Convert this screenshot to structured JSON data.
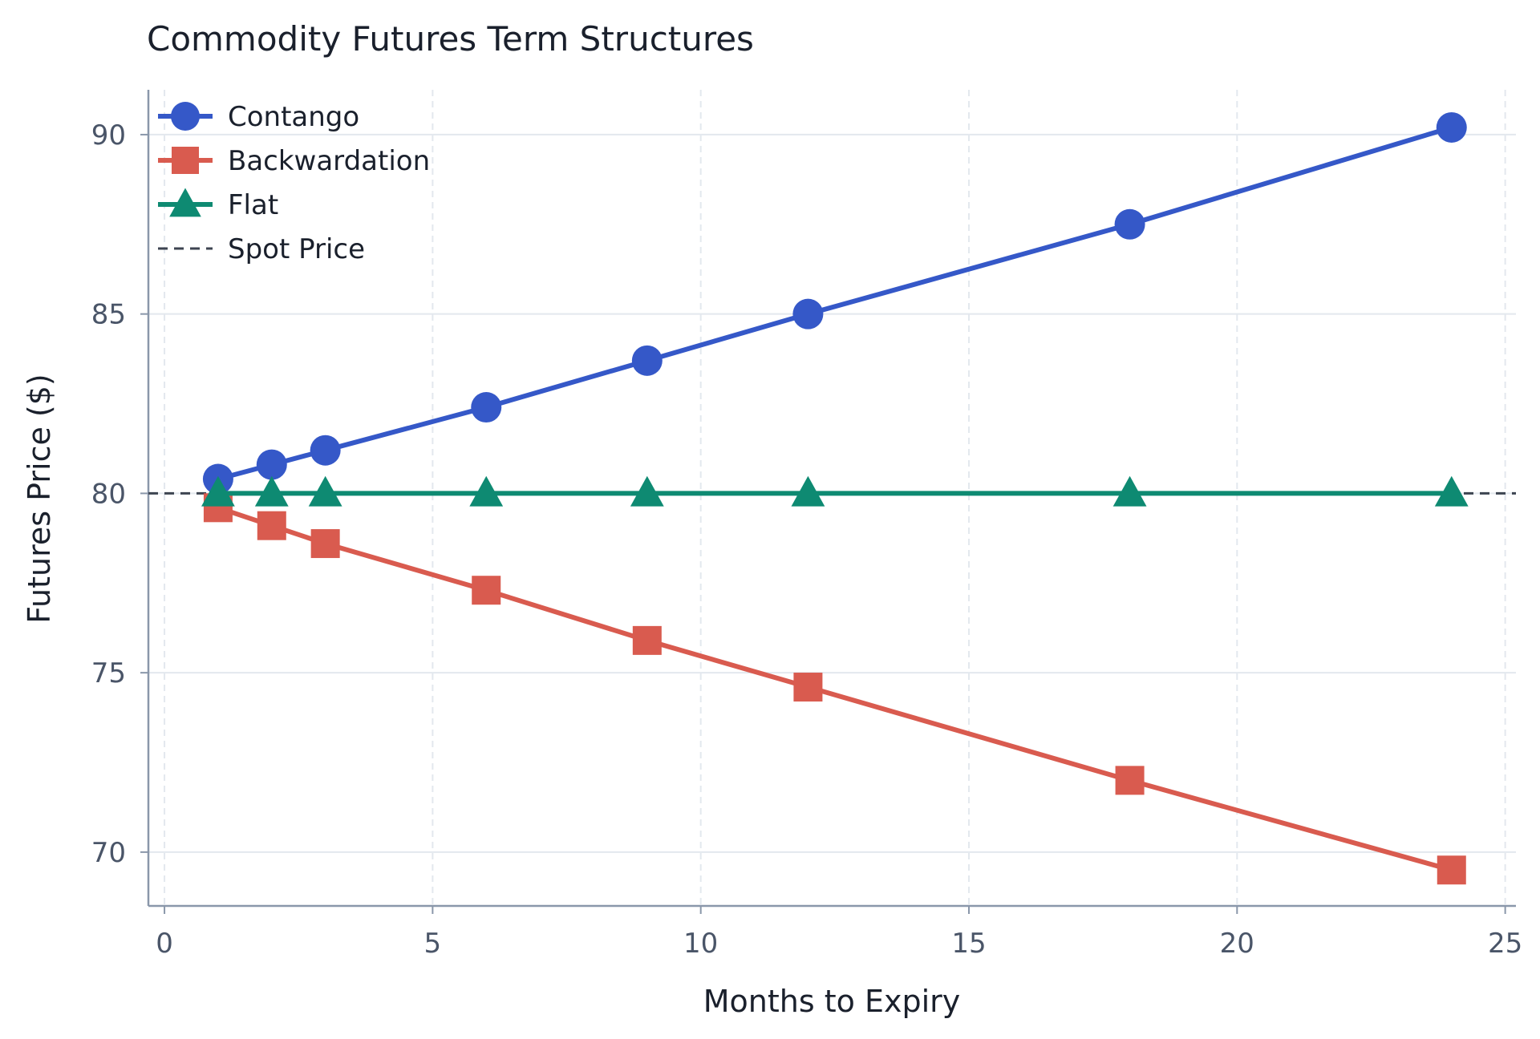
{
  "chart_data": {
    "type": "line",
    "title": "Commodity Futures Term Structures",
    "xlabel": "Months to Expiry",
    "ylabel": "Futures Price ($)",
    "xlim": [
      -0.3,
      25.2
    ],
    "ylim": [
      68.5,
      91.25
    ],
    "xticks": [
      0,
      5,
      10,
      15,
      20,
      25
    ],
    "yticks": [
      70,
      75,
      80,
      85,
      90
    ],
    "grid": true,
    "legend_position": "top-left",
    "x": [
      1,
      2,
      3,
      6,
      9,
      12,
      18,
      24
    ],
    "series": [
      {
        "name": "Contango",
        "color": "#3558c8",
        "marker": "circle",
        "values": [
          80.4,
          80.8,
          81.2,
          82.4,
          83.7,
          85.0,
          87.5,
          90.2
        ]
      },
      {
        "name": "Backwardation",
        "color": "#d95b4f",
        "marker": "square",
        "values": [
          79.6,
          79.1,
          78.6,
          77.3,
          75.9,
          74.6,
          72.0,
          69.5
        ]
      },
      {
        "name": "Flat",
        "color": "#0e8a72",
        "marker": "triangle",
        "values": [
          80.0,
          80.0,
          80.0,
          80.0,
          80.0,
          80.0,
          80.0,
          80.0
        ]
      }
    ],
    "reference_lines": [
      {
        "name": "Spot Price",
        "y": 80,
        "color": "#3d4451",
        "style": "dashed"
      }
    ]
  }
}
